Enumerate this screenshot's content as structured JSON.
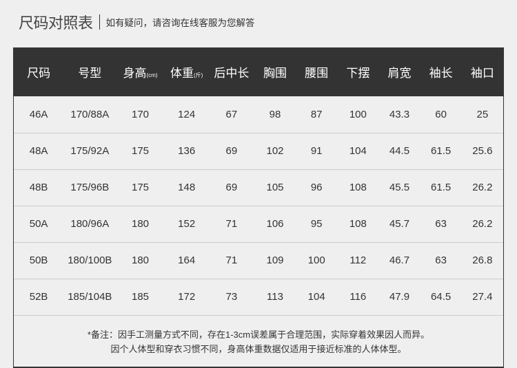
{
  "header": {
    "title": "尺码对照表",
    "subtitle": "如有疑问，请咨询在线客服为您解答"
  },
  "table": {
    "columns": [
      {
        "label": "尺码",
        "unit": ""
      },
      {
        "label": "号型",
        "unit": ""
      },
      {
        "label": "身高",
        "unit": "(cm)"
      },
      {
        "label": "体重",
        "unit": "(斤)"
      },
      {
        "label": "后中长",
        "unit": ""
      },
      {
        "label": "胸围",
        "unit": ""
      },
      {
        "label": "腰围",
        "unit": ""
      },
      {
        "label": "下摆",
        "unit": ""
      },
      {
        "label": "肩宽",
        "unit": ""
      },
      {
        "label": "袖长",
        "unit": ""
      },
      {
        "label": "袖口",
        "unit": ""
      }
    ],
    "rows": [
      [
        "46A",
        "170/88A",
        "170",
        "124",
        "67",
        "98",
        "87",
        "100",
        "43.3",
        "60",
        "25"
      ],
      [
        "48A",
        "175/92A",
        "175",
        "136",
        "69",
        "102",
        "91",
        "104",
        "44.5",
        "61.5",
        "25.6"
      ],
      [
        "48B",
        "175/96B",
        "175",
        "148",
        "69",
        "105",
        "96",
        "108",
        "45.5",
        "61.5",
        "26.2"
      ],
      [
        "50A",
        "180/96A",
        "180",
        "152",
        "71",
        "106",
        "95",
        "108",
        "45.7",
        "63",
        "26.2"
      ],
      [
        "50B",
        "180/100B",
        "180",
        "164",
        "71",
        "109",
        "100",
        "112",
        "46.7",
        "63",
        "26.8"
      ],
      [
        "52B",
        "185/104B",
        "185",
        "172",
        "73",
        "113",
        "104",
        "116",
        "47.9",
        "64.5",
        "27.4"
      ]
    ]
  },
  "note": {
    "line1": "*备注：因手工测量方式不同，存在1-3cm误差属于合理范围，实际穿着效果因人而异。",
    "line2": "因个人体型和穿衣习惯不同，身高体重数据仅适用于接近标准的人体体型。"
  }
}
